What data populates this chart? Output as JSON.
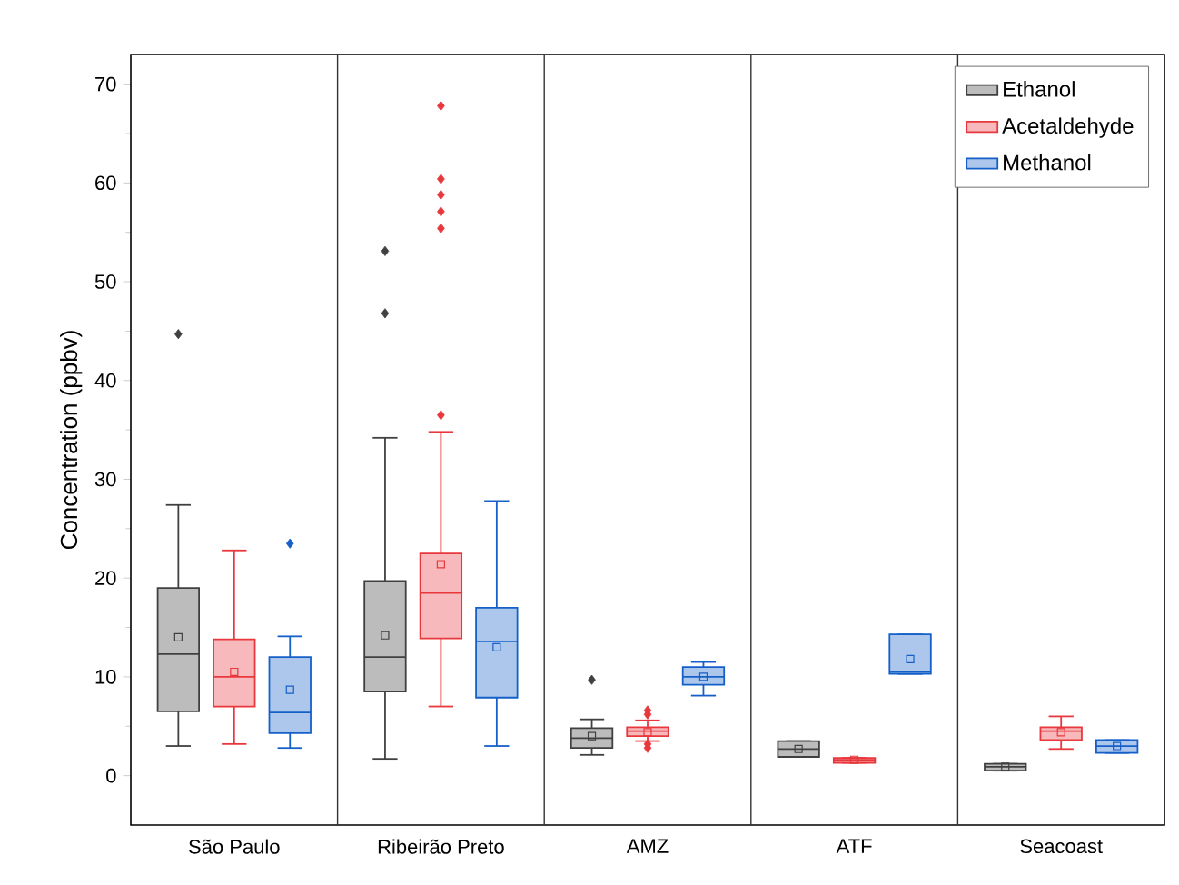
{
  "chart_data": {
    "type": "box",
    "ylabel": "Concentration (ppbv)",
    "categories": [
      "São Paulo",
      "Ribeirão Preto",
      "AMZ",
      "ATF",
      "Seacoast"
    ],
    "ylim": [
      -5,
      73
    ],
    "yticks": [
      0,
      10,
      20,
      30,
      40,
      50,
      60,
      70
    ],
    "legend": "top right",
    "series": [
      {
        "name": "Ethanol",
        "color": "#404040",
        "boxes": [
          {
            "low": 3,
            "q1": 6.5,
            "median": 12.3,
            "q3": 19,
            "high": 27.4,
            "mean": 14,
            "outliers": [
              44.7
            ]
          },
          {
            "low": 1.7,
            "q1": 8.5,
            "median": 12,
            "q3": 19.7,
            "high": 34.2,
            "mean": 14.2,
            "outliers": [
              46.8,
              53.1
            ]
          },
          {
            "low": 2.1,
            "q1": 2.8,
            "median": 3.8,
            "q3": 4.8,
            "high": 5.7,
            "mean": 4,
            "outliers": [
              9.7
            ]
          },
          {
            "low": 1.9,
            "q1": 1.9,
            "median": 2.7,
            "q3": 3.5,
            "high": 3.5,
            "mean": 2.7
          },
          {
            "low": 0.5,
            "q1": 0.5,
            "median": 0.9,
            "q3": 1.2,
            "high": 1.2,
            "mean": 0.9
          }
        ]
      },
      {
        "name": "Acetaldehyde",
        "color": "#e8383d",
        "boxes": [
          {
            "low": 3.2,
            "q1": 7,
            "median": 10,
            "q3": 13.8,
            "high": 22.8,
            "mean": 10.5
          },
          {
            "low": 7,
            "q1": 13.9,
            "median": 18.5,
            "q3": 22.5,
            "high": 34.8,
            "mean": 21.4,
            "outliers": [
              36.5,
              55.4,
              57.1,
              58.8,
              60.4,
              67.8
            ]
          },
          {
            "low": 3.5,
            "q1": 4,
            "median": 4.5,
            "q3": 4.9,
            "high": 5.6,
            "mean": 4.4,
            "outliers": [
              2.8,
              3.2,
              6.2,
              6.6
            ]
          },
          {
            "low": 1.3,
            "q1": 1.3,
            "median": 1.6,
            "q3": 1.8,
            "high": 1.8,
            "mean": 1.6
          },
          {
            "low": 2.7,
            "q1": 3.6,
            "median": 4.5,
            "q3": 4.9,
            "high": 6,
            "mean": 4.4
          }
        ]
      },
      {
        "name": "Methanol",
        "color": "#1560c8",
        "boxes": [
          {
            "low": 2.8,
            "q1": 4.3,
            "median": 6.4,
            "q3": 12,
            "high": 14.1,
            "mean": 8.7,
            "outliers": [
              23.5
            ]
          },
          {
            "low": 3,
            "q1": 7.9,
            "median": 13.6,
            "q3": 17,
            "high": 27.8,
            "mean": 13
          },
          {
            "low": 8.1,
            "q1": 9.2,
            "median": 10,
            "q3": 11,
            "high": 11.5,
            "mean": 10
          },
          {
            "low": 10.3,
            "q1": 10.3,
            "median": 10.5,
            "q3": 14.3,
            "high": 14.3,
            "mean": 11.8
          },
          {
            "low": 2.3,
            "q1": 2.3,
            "median": 3,
            "q3": 3.6,
            "high": 3.6,
            "mean": 3
          }
        ]
      }
    ]
  }
}
